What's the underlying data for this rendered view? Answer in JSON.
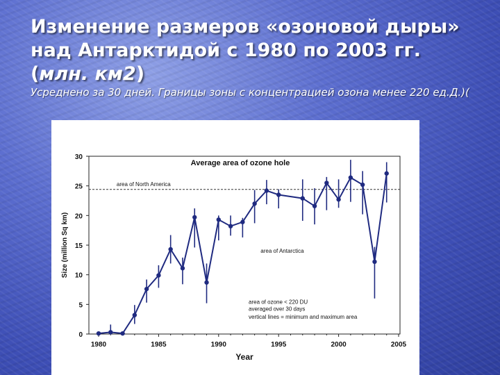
{
  "slide": {
    "title_main": "Изменение размеров «озоновой дыры» над Антарктидой с 1980 по 2003 гг. (",
    "title_unit": "млн. км2",
    "title_close": ")",
    "subtitle": "Усреднено за 30 дней. Границы зоны с концентрацией озона менее 220 ед.Д.)("
  },
  "chart_data": {
    "type": "line",
    "title": "Average area of ozone hole",
    "xlabel": "Year",
    "ylabel": "Size (million Sq km)",
    "xlim": [
      1979.5,
      2005
    ],
    "ylim": [
      0,
      30
    ],
    "x_ticks": [
      1980,
      1985,
      1990,
      1995,
      2000,
      2005
    ],
    "y_ticks": [
      0,
      5,
      10,
      15,
      20,
      25,
      30
    ],
    "series": [
      {
        "color": "#1f2a80",
        "x": [
          1980,
          1981,
          1982,
          1983,
          1984,
          1985,
          1986,
          1987,
          1988,
          1989,
          1990,
          1991,
          1992,
          1993,
          1994,
          1995,
          1996,
          1997,
          1998,
          1999,
          2000,
          2001,
          2002,
          2003,
          2004
        ],
        "y": [
          0.1,
          0.3,
          0.1,
          3.2,
          7.6,
          9.9,
          14.3,
          11.1,
          19.7,
          8.7,
          19.3,
          18.2,
          18.9,
          22.0,
          24.2,
          23.5,
          null,
          22.9,
          21.6,
          25.5,
          22.7,
          26.4,
          25.2,
          12.2,
          27.1
        ],
        "err_low": [
          0,
          0,
          0,
          1.7,
          5.3,
          7.8,
          11.9,
          8.4,
          14.6,
          5.2,
          15.8,
          16.6,
          16.3,
          18.7,
          21.9,
          21.2,
          null,
          19.1,
          18.5,
          20.9,
          21.3,
          22.3,
          20.2,
          6.0,
          22.2
        ],
        "err_high": [
          0.1,
          1.6,
          0.1,
          4.9,
          9.2,
          11.6,
          16.7,
          12.9,
          21.2,
          11.9,
          20.0,
          20.0,
          19.6,
          24.3,
          26.0,
          24.4,
          null,
          26.1,
          24.6,
          26.5,
          26.1,
          29.4,
          27.5,
          14.7,
          29.0
        ]
      }
    ],
    "reference_line": {
      "value": 24.4,
      "label": "area of North America"
    },
    "annotations": [
      {
        "text": "area of Antarctica",
        "x": 1993.5,
        "y": 13.7
      },
      {
        "text": "area of ozone < 220 DU",
        "x": 1992.5,
        "y": 5.1
      },
      {
        "text": "averaged over 30 days",
        "x": 1992.5,
        "y": 3.9
      },
      {
        "text": "vertical lines = minimum and maximum area",
        "x": 1992.5,
        "y": 2.6
      }
    ],
    "grid": false,
    "legend": "none"
  }
}
